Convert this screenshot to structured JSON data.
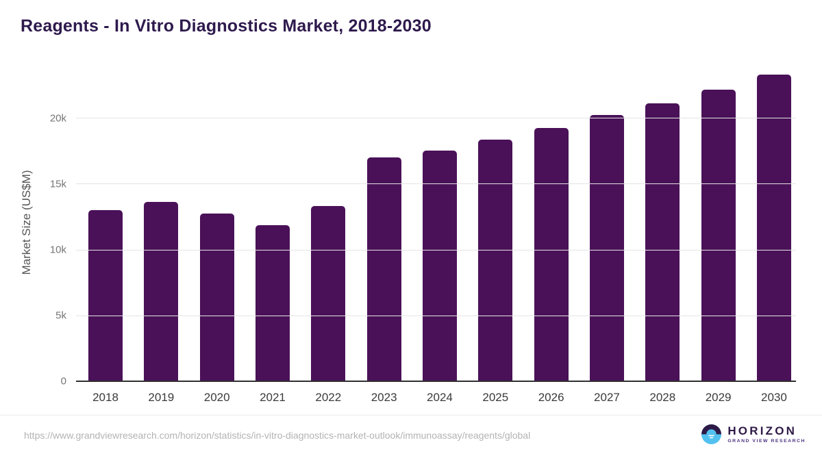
{
  "page": {
    "title": "Reagents - In Vitro Diagnostics Market, 2018-2030",
    "source_url": "https://www.grandviewresearch.com/horizon/statistics/in-vitro-diagnostics-market-outlook/immunoassay/reagents/global"
  },
  "logo": {
    "icon": "horizon-sun-icon",
    "name": "HORIZON",
    "subtitle": "GRAND VIEW RESEARCH",
    "icon_colors": {
      "top": "#2e1a47",
      "bottom": "#53c1f0",
      "reflection": "#ffffff"
    }
  },
  "chart_data": {
    "type": "bar",
    "title": "Reagents - In Vitro Diagnostics Market, 2018-2030",
    "xlabel": "",
    "ylabel": "Market Size (US$M)",
    "categories": [
      "2018",
      "2019",
      "2020",
      "2021",
      "2022",
      "2023",
      "2024",
      "2025",
      "2026",
      "2027",
      "2028",
      "2029",
      "2030"
    ],
    "values": [
      13050,
      13650,
      12800,
      11900,
      13350,
      17050,
      17550,
      18400,
      19300,
      20250,
      21150,
      22200,
      23350
    ],
    "yticks": [
      {
        "label": "0",
        "value": 0
      },
      {
        "label": "5k",
        "value": 5000
      },
      {
        "label": "10k",
        "value": 10000
      },
      {
        "label": "15k",
        "value": 15000
      },
      {
        "label": "20k",
        "value": 20000
      }
    ],
    "ylim": [
      0,
      23800
    ],
    "grid": true,
    "legend": false,
    "bar_color": "#4a1158"
  }
}
